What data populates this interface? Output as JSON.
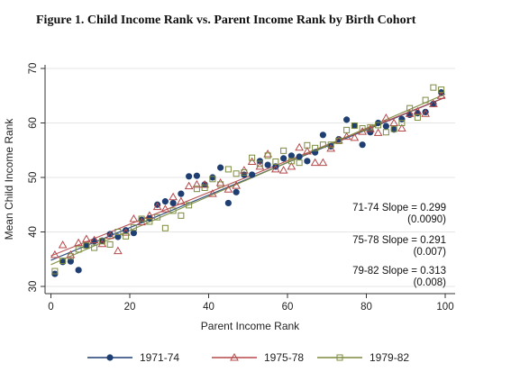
{
  "figure_title": "Figure 1. Child Income Rank vs. Parent Income Rank by Birth Cohort",
  "chart_data": {
    "type": "scatter",
    "title": "Figure 1. Child Income Rank vs. Parent Income Rank by Birth Cohort",
    "xlabel": "Parent Income Rank",
    "ylabel": "Mean Child Income Rank",
    "xlim": [
      0,
      100
    ],
    "ylim": [
      30,
      70
    ],
    "xticks": [
      0,
      20,
      40,
      60,
      80,
      100
    ],
    "yticks": [
      30,
      40,
      50,
      60,
      70
    ],
    "grid": "horizontal",
    "legend_position": "bottom",
    "series": [
      {
        "name": "1971-74",
        "color": "#1f3f73",
        "marker": "circle",
        "x": [
          1,
          3,
          5,
          7,
          9,
          11,
          13,
          15,
          17,
          19,
          21,
          23,
          25,
          27,
          29,
          31,
          33,
          35,
          37,
          39,
          41,
          43,
          45,
          47,
          49,
          51,
          53,
          55,
          57,
          59,
          61,
          63,
          65,
          67,
          69,
          71,
          73,
          75,
          77,
          79,
          81,
          83,
          85,
          87,
          89,
          91,
          93,
          95,
          97,
          99
        ],
        "y": [
          32.3,
          34.5,
          34.6,
          33.0,
          37.5,
          38.3,
          38.4,
          39.6,
          39.1,
          40.3,
          39.8,
          42.2,
          42.5,
          45.0,
          45.6,
          45.3,
          47.0,
          50.2,
          50.3,
          48.7,
          50.0,
          51.8,
          45.3,
          47.3,
          50.5,
          50.5,
          53.0,
          52.3,
          52.0,
          53.5,
          54.0,
          53.8,
          53.0,
          54.6,
          57.8,
          55.7,
          57.0,
          60.6,
          59.5,
          56.0,
          58.3,
          60.0,
          59.4,
          58.8,
          60.7,
          61.5,
          61.8,
          62.0,
          63.5,
          65.6
        ]
      },
      {
        "name": "1975-78",
        "color": "#b5484a",
        "marker": "triangle",
        "x": [
          1,
          3,
          5,
          7,
          9,
          11,
          13,
          15,
          17,
          19,
          21,
          23,
          25,
          27,
          29,
          31,
          33,
          35,
          37,
          39,
          41,
          43,
          45,
          47,
          49,
          51,
          53,
          55,
          57,
          59,
          61,
          63,
          65,
          67,
          69,
          71,
          73,
          75,
          77,
          79,
          81,
          83,
          85,
          87,
          89,
          91,
          93,
          95,
          97,
          99
        ],
        "y": [
          35.8,
          37.6,
          35.8,
          38.0,
          38.7,
          38.5,
          37.8,
          39.3,
          36.5,
          39.9,
          42.4,
          41.8,
          43.0,
          44.6,
          44.2,
          46.4,
          45.6,
          48.4,
          48.7,
          48.7,
          47.0,
          49.0,
          47.8,
          48.5,
          51.3,
          52.9,
          52.0,
          54.3,
          51.5,
          51.3,
          52.0,
          55.5,
          54.8,
          52.7,
          52.7,
          55.3,
          56.8,
          57.5,
          57.3,
          58.4,
          58.9,
          58.2,
          60.9,
          60.0,
          59.0,
          61.7,
          62.1,
          61.7,
          63.5,
          65.0
        ]
      },
      {
        "name": "1979-82",
        "color": "#7c8b3f",
        "marker": "square",
        "x": [
          1,
          3,
          5,
          7,
          9,
          11,
          13,
          15,
          17,
          19,
          21,
          23,
          25,
          27,
          29,
          31,
          33,
          35,
          37,
          39,
          41,
          43,
          45,
          47,
          49,
          51,
          53,
          55,
          57,
          59,
          61,
          63,
          65,
          67,
          69,
          71,
          73,
          75,
          77,
          79,
          81,
          83,
          85,
          87,
          89,
          91,
          93,
          95,
          97,
          99
        ],
        "y": [
          32.8,
          34.7,
          35.5,
          36.8,
          37.5,
          37.1,
          38.3,
          37.7,
          40.0,
          39.2,
          40.8,
          42.4,
          41.9,
          42.7,
          40.7,
          43.9,
          43.0,
          44.9,
          47.9,
          48.1,
          49.7,
          48.7,
          51.5,
          50.7,
          50.9,
          53.6,
          52.5,
          54.0,
          52.9,
          54.9,
          53.0,
          52.7,
          55.9,
          55.4,
          56.0,
          56.0,
          56.7,
          58.7,
          59.5,
          59.0,
          59.2,
          59.6,
          58.3,
          58.9,
          60.0,
          62.7,
          61.0,
          64.2,
          66.5,
          66.1
        ]
      }
    ],
    "annotations": [
      {
        "text": "71-74 Slope = 0.299",
        "sub": "(0.0090)"
      },
      {
        "text": "75-78 Slope = 0.291",
        "sub": "(0.007)"
      },
      {
        "text": "79-82 Slope = 0.313",
        "sub": "(0.008)"
      }
    ],
    "fit_lines": [
      {
        "series": "1971-74",
        "intercept": 34.8,
        "slope": 0.299
      },
      {
        "series": "1975-78",
        "intercept": 35.6,
        "slope": 0.291
      },
      {
        "series": "1979-82",
        "intercept": 34.0,
        "slope": 0.313
      }
    ]
  }
}
